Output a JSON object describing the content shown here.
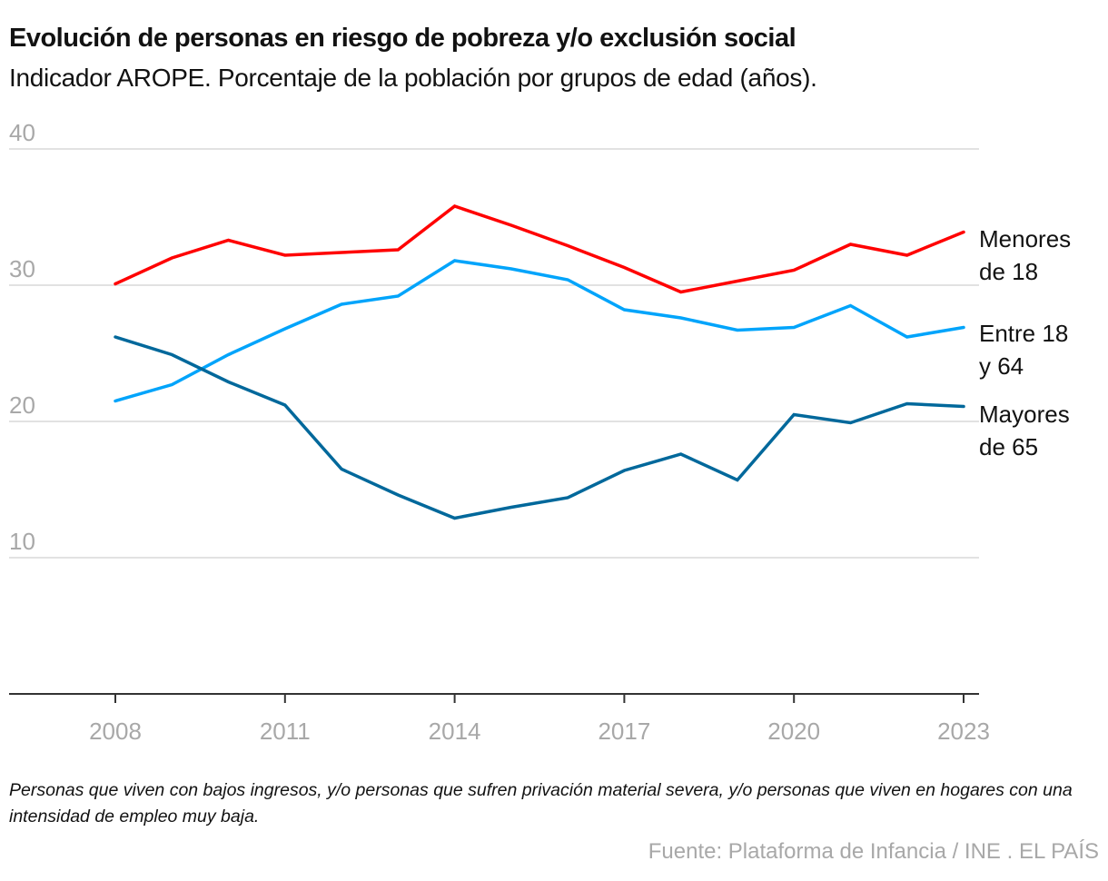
{
  "header": {
    "title": "Evolución de personas en riesgo de pobreza y/o exclusión social",
    "subtitle": "Indicador AROPE. Porcentaje de la población por grupos de edad (años)."
  },
  "footer": {
    "note": "Personas que viven con bajos ingresos, y/o personas que sufren privación material severa, y/o personas que viven en hogares con una intensidad de empleo muy baja.",
    "source": "Fuente: Plataforma de Infancia / INE . EL PAÍS"
  },
  "chart_data": {
    "type": "line",
    "title": "Evolución de personas en riesgo de pobreza y/o exclusión social",
    "subtitle": "Indicador AROPE. Porcentaje de la población por grupos de edad (años).",
    "xlabel": "",
    "ylabel": "",
    "x": [
      2008,
      2009,
      2010,
      2011,
      2012,
      2013,
      2014,
      2015,
      2016,
      2017,
      2018,
      2019,
      2020,
      2021,
      2022,
      2023
    ],
    "xticks": [
      "2008",
      "2011",
      "2014",
      "2017",
      "2020",
      "2023"
    ],
    "yticks": [
      "10",
      "20",
      "30",
      "40"
    ],
    "ylim": [
      0,
      40
    ],
    "xlim": [
      2008,
      2023
    ],
    "grid": true,
    "legend": "direct labels at right end of lines",
    "series": [
      {
        "name": "Menores de 18",
        "label_lines": [
          "Menores",
          "de 18"
        ],
        "color": "#ff0000",
        "values": [
          30.1,
          32.0,
          33.3,
          32.2,
          32.4,
          32.6,
          35.8,
          34.4,
          32.9,
          31.3,
          29.5,
          30.3,
          31.1,
          33.0,
          32.2,
          33.9
        ]
      },
      {
        "name": "Entre 18 y 64",
        "label_lines": [
          "Entre 18",
          "y 64"
        ],
        "color": "#00a4fb",
        "values": [
          21.5,
          22.7,
          24.9,
          26.8,
          28.6,
          29.2,
          31.8,
          31.2,
          30.4,
          28.2,
          27.6,
          26.7,
          26.9,
          28.5,
          26.2,
          26.9
        ]
      },
      {
        "name": "Mayores de 65",
        "label_lines": [
          "Mayores",
          "de 65"
        ],
        "color": "#00689b",
        "values": [
          26.2,
          24.9,
          22.9,
          21.2,
          16.5,
          14.6,
          12.9,
          13.7,
          14.4,
          16.4,
          17.6,
          15.7,
          20.5,
          19.9,
          21.3,
          21.1
        ]
      }
    ]
  }
}
